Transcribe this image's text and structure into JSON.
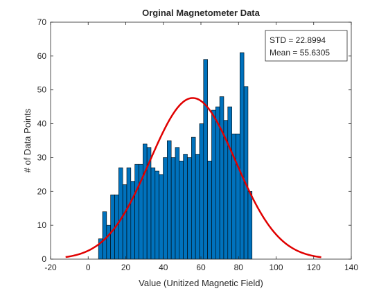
{
  "chart_data": {
    "type": "bar",
    "title": "Orginal Magnetometer Data",
    "xlabel": "Value (Unitized Magnetic Field)",
    "ylabel": "# of Data Points",
    "xlim": [
      -20,
      140
    ],
    "ylim": [
      0,
      70
    ],
    "xticks": [
      -20,
      0,
      20,
      40,
      60,
      80,
      100,
      120,
      140
    ],
    "yticks": [
      0,
      10,
      20,
      30,
      40,
      50,
      60,
      70
    ],
    "grid": false,
    "bin_start": 5.5,
    "bin_width": 2.15,
    "values": [
      6,
      14,
      10,
      19,
      19,
      27,
      22,
      27,
      23,
      28,
      28,
      34,
      33,
      27,
      26,
      25,
      30,
      35,
      30,
      33,
      29,
      31,
      30,
      36,
      31,
      40,
      59,
      29,
      44,
      45,
      48,
      41,
      45,
      37,
      37,
      61,
      51,
      20
    ],
    "bar_color": "#0072BD",
    "bar_edge_color": "#000000",
    "fit": {
      "type": "normal",
      "mean": 55.6305,
      "std": 22.8994,
      "peak": 47.6,
      "x_range": [
        -12,
        124
      ],
      "color": "#E00000"
    },
    "annotation": {
      "lines": [
        "STD = 22.8994",
        "Mean = 55.6305"
      ],
      "placement": "top-right"
    }
  }
}
